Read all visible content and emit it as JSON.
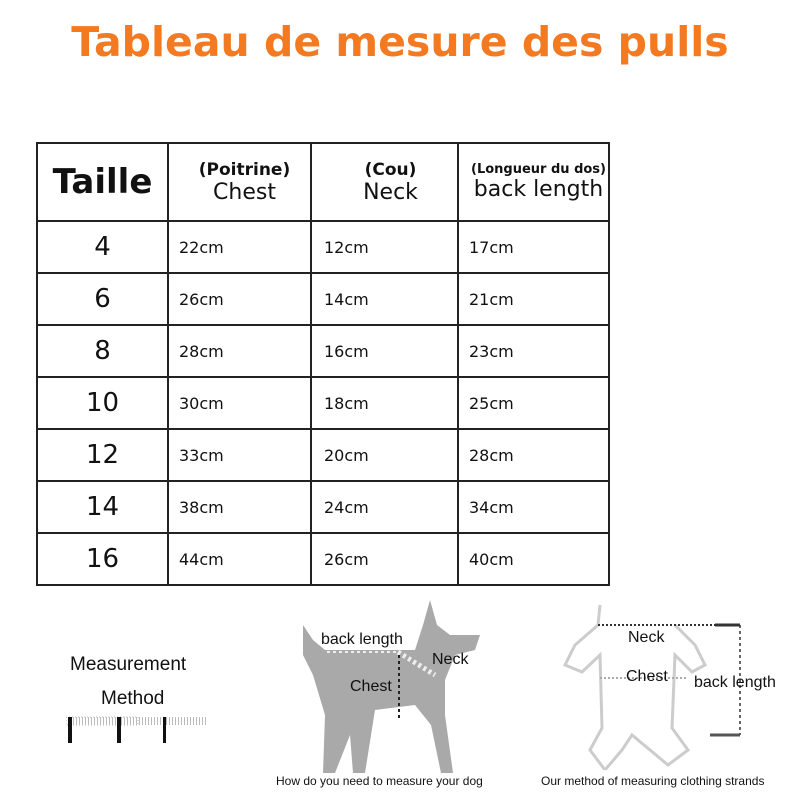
{
  "title": "Tableau de mesure des pulls",
  "table": {
    "headers": [
      {
        "label": "Taille"
      },
      {
        "fr": "(Poitrine)",
        "en": "Chest"
      },
      {
        "fr": "(Cou)",
        "en": "Neck"
      },
      {
        "fr": "(Longueur du dos)",
        "en": "back length"
      }
    ],
    "rows": [
      [
        "4",
        "22cm",
        "12cm",
        "17cm"
      ],
      [
        "6",
        "26cm",
        "14cm",
        "21cm"
      ],
      [
        "8",
        "28cm",
        "16cm",
        "23cm"
      ],
      [
        "10",
        "30cm",
        "18cm",
        "25cm"
      ],
      [
        "12",
        "33cm",
        "20cm",
        "28cm"
      ],
      [
        "14",
        "38cm",
        "24cm",
        "34cm"
      ],
      [
        "16",
        "44cm",
        "26cm",
        "40cm"
      ]
    ]
  },
  "measurement": {
    "line1": "Measurement",
    "line2": "Method"
  },
  "dog_diagram": {
    "back_length": "back length",
    "neck": "Neck",
    "chest": "Chest",
    "caption": "How do you need to measure your dog"
  },
  "clothing_diagram": {
    "neck": "Neck",
    "chest": "Chest",
    "back_length": "back length",
    "caption": "Our method of measuring clothing strands"
  },
  "colors": {
    "title": "#f47a21",
    "dog": "#a9a9a9"
  }
}
